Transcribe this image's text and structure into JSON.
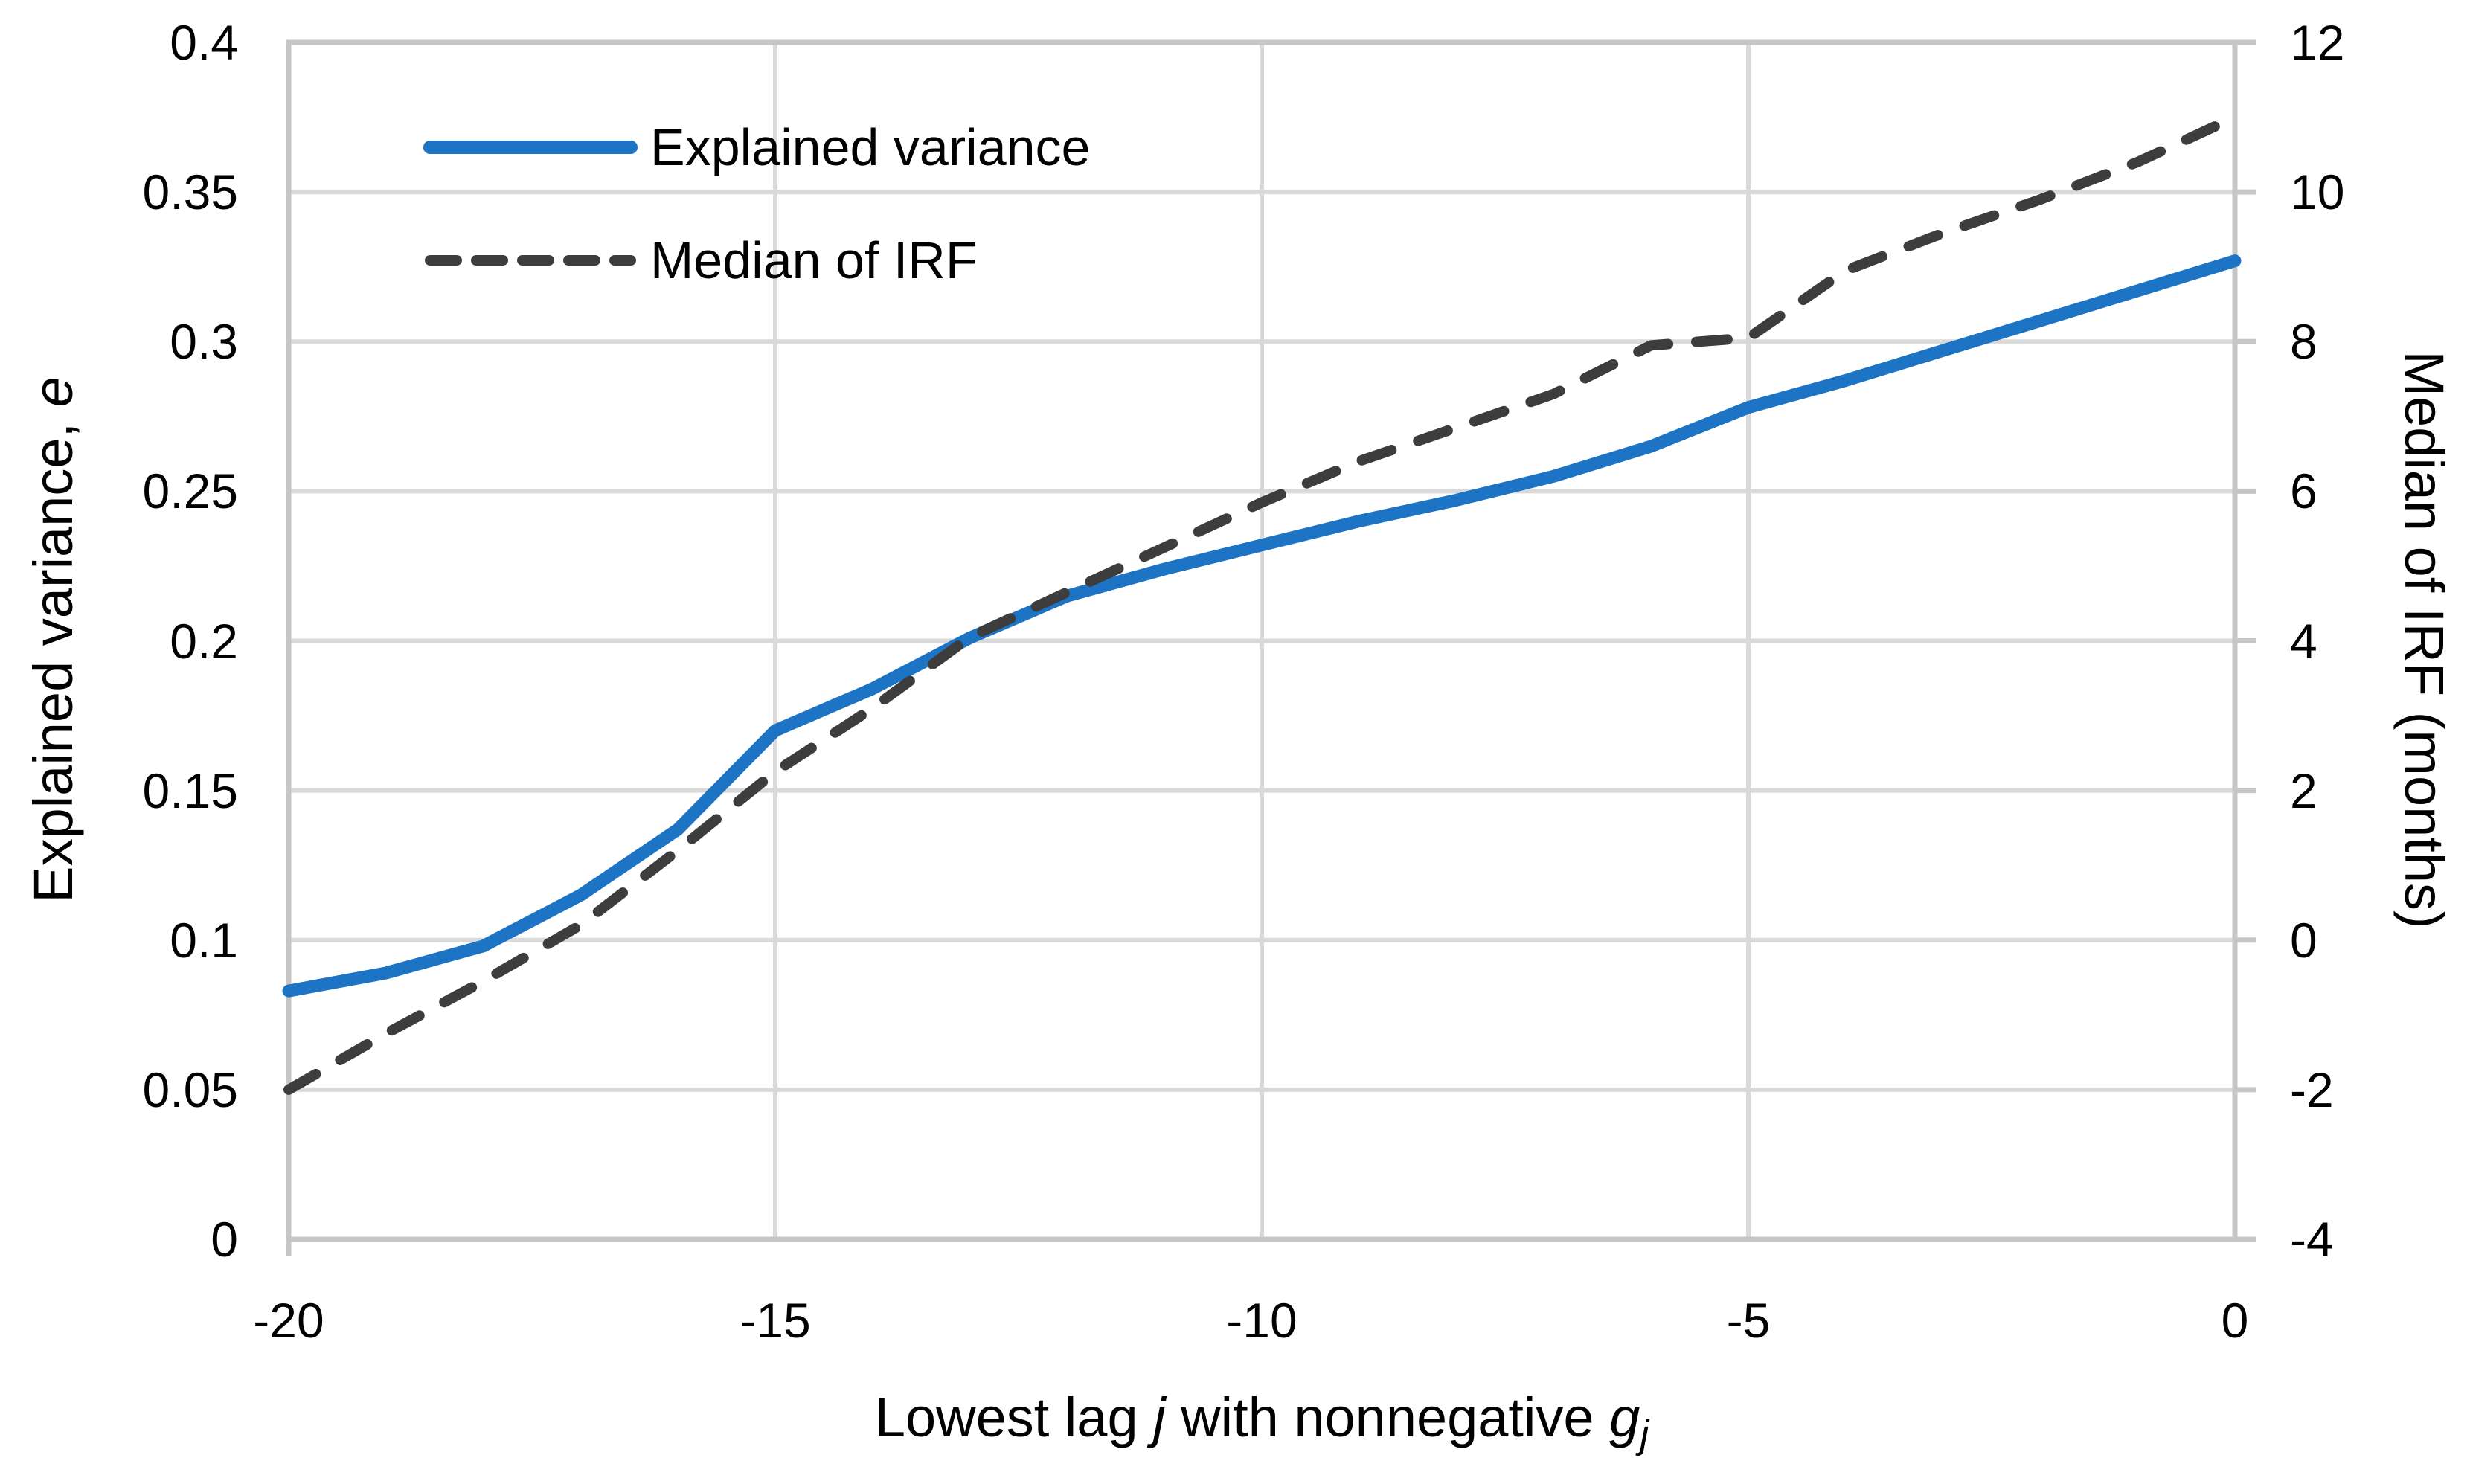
{
  "chart_data": {
    "type": "line",
    "x": [
      -20,
      -19,
      -18,
      -17,
      -16,
      -15,
      -14,
      -13,
      -12,
      -11,
      -10,
      -9,
      -8,
      -7,
      -6,
      -5,
      -4,
      -3,
      -2,
      -1,
      0
    ],
    "series": [
      {
        "name": "Explained variance",
        "axis": "left",
        "color": "#1d73c4",
        "style": "solid",
        "values": [
          0.083,
          0.089,
          0.098,
          0.115,
          0.137,
          0.17,
          0.184,
          0.201,
          0.215,
          0.224,
          0.232,
          0.24,
          0.247,
          0.255,
          0.265,
          0.278,
          0.287,
          0.297,
          0.307,
          0.317,
          0.327
        ]
      },
      {
        "name": "Median of IRF",
        "axis": "right",
        "color": "#3d3d3d",
        "style": "dashed",
        "values": [
          -2.0,
          -1.25,
          -0.55,
          0.2,
          1.2,
          2.25,
          3.1,
          4.05,
          4.65,
          5.25,
          5.85,
          6.4,
          6.85,
          7.3,
          7.95,
          8.05,
          8.95,
          9.45,
          9.9,
          10.4,
          11.0
        ]
      }
    ],
    "axes": {
      "y_left": {
        "min": 0,
        "max": 0.4,
        "tick_values": [
          0.4,
          0.35,
          0.3,
          0.25,
          0.2,
          0.15,
          0.1,
          0.05,
          0
        ],
        "tick_labels": [
          "0.4",
          "0.35",
          "0.3",
          "0.25",
          "0.2",
          "0.15",
          "0.1",
          "0.05",
          "0"
        ]
      },
      "y_right": {
        "min": -4,
        "max": 12,
        "tick_values": [
          12,
          10,
          8,
          6,
          4,
          2,
          0,
          -2,
          -4
        ],
        "tick_labels": [
          "12",
          "10",
          "8",
          "6",
          "4",
          "2",
          "0",
          "-2",
          "-4"
        ]
      },
      "x_axis": {
        "min": -20,
        "max": 0,
        "tick_values": [
          -20,
          -15,
          -10,
          -5,
          0
        ],
        "tick_labels": [
          "-20",
          "-15",
          "-10",
          "-5",
          "0"
        ]
      },
      "grid": "on",
      "grid_color": "#d9d9d9",
      "border_color": "#c6c6c6"
    },
    "titles": {
      "xlabel": {
        "pre": "Lowest lag ",
        "var1": "j",
        "mid": " with nonnegative ",
        "var2": "g",
        "sub": "j"
      },
      "ylabel_left": {
        "pre": "Explained variance, ",
        "var": "e"
      },
      "ylabel_right": "Median of IRF (months)"
    },
    "legend": {
      "position": "inside-top-left",
      "items": [
        {
          "label": "Explained variance"
        },
        {
          "label": "Median of IRF"
        }
      ]
    }
  }
}
